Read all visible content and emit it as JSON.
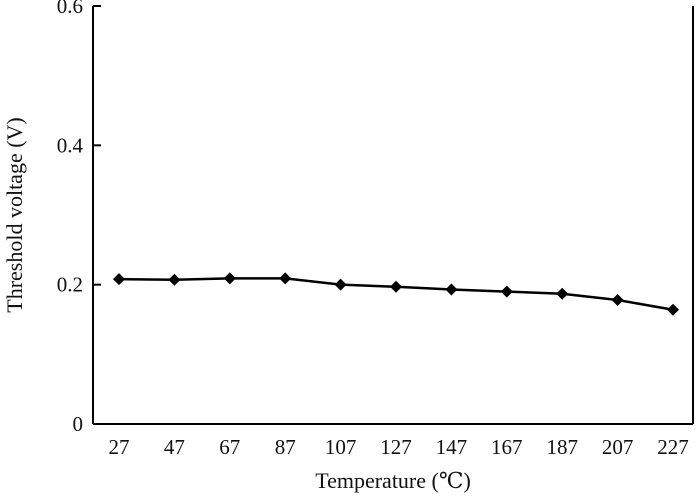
{
  "chart_data": {
    "type": "line",
    "title": "",
    "xlabel": "Temperature (℃)",
    "ylabel": "Threshold voltage (V)",
    "categories": [
      "27",
      "47",
      "67",
      "87",
      "107",
      "127",
      "147",
      "167",
      "187",
      "207",
      "227"
    ],
    "series": [
      {
        "values": [
          0.208,
          0.207,
          0.209,
          0.209,
          0.2,
          0.197,
          0.193,
          0.19,
          0.187,
          0.178,
          0.164
        ]
      }
    ],
    "ylim": [
      0,
      0.6
    ],
    "yticks": [
      "0",
      "0.2",
      "0.4",
      "0.6"
    ],
    "ytick_values": [
      0,
      0.2,
      0.4,
      0.6
    ],
    "grid": false,
    "legend": "none",
    "marker": "diamond",
    "line_color": "#000000"
  }
}
